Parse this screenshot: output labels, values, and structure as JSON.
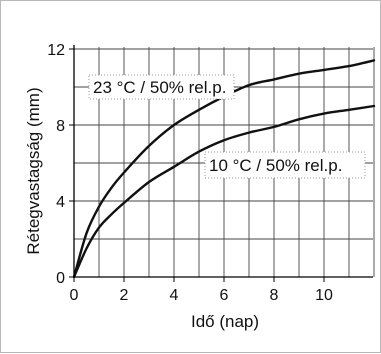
{
  "chart_data": {
    "type": "line",
    "title": "",
    "xlabel": "Idő (nap)",
    "ylabel": "Rétegvastagság (mm)",
    "xlim": [
      0,
      12
    ],
    "ylim": [
      0,
      12
    ],
    "x_ticks": [
      0,
      2,
      4,
      6,
      8,
      10
    ],
    "y_ticks": [
      0,
      4,
      8,
      12
    ],
    "grid": true,
    "series": [
      {
        "name": "23 °C / 50% rel.p.",
        "x": [
          0,
          0.5,
          1,
          1.5,
          2,
          3,
          4,
          5,
          6,
          7,
          8,
          9,
          10,
          11,
          12
        ],
        "y": [
          0,
          2.3,
          3.7,
          4.7,
          5.5,
          6.9,
          8.0,
          8.8,
          9.5,
          10.1,
          10.4,
          10.7,
          10.9,
          11.1,
          11.4
        ]
      },
      {
        "name": "10 °C / 50% rel.p.",
        "x": [
          0,
          0.5,
          1,
          1.5,
          2,
          3,
          4,
          5,
          6,
          7,
          8,
          9,
          10,
          11,
          12
        ],
        "y": [
          0,
          1.5,
          2.6,
          3.3,
          3.9,
          5.0,
          5.8,
          6.6,
          7.2,
          7.6,
          7.9,
          8.3,
          8.6,
          8.8,
          9.0
        ]
      }
    ],
    "annotations": [
      "23 °C / 50% rel.p.",
      "10 °C / 50% rel.p."
    ]
  }
}
